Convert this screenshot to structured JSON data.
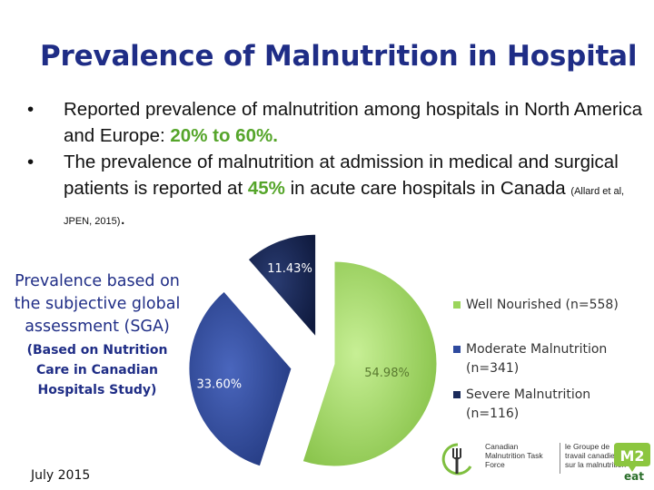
{
  "title": "Prevalence of Malnutrition in Hospital",
  "bullets": {
    "b1_text": "Reported prevalence of malnutrition among hospitals in North America and Europe: ",
    "b1_highlight": "20% to 60%.",
    "b2_text_a": "The prevalence of malnutrition at admission in medical and surgical patients is reported at ",
    "b2_highlight": "45%",
    "b2_text_b": " in acute care hospitals in Canada ",
    "b2_citation": "(Allard et al, JPEN, 2015)",
    "b2_end": "."
  },
  "sga_label": {
    "main": "Prevalence based on the subjective global assessment (SGA)",
    "sub": "(Based on Nutrition Care in Canadian Hospitals Study)"
  },
  "date": "July 2015",
  "logo": {
    "en": "Canadian Malnutrition Task Force",
    "fr": "le Groupe de travail canadien sur la malnutrition",
    "m2_top": "M2",
    "m2_bottom": "eat"
  },
  "chart_data": {
    "type": "pie",
    "series": [
      {
        "name": "Well Nourished (n=558)",
        "value": 54.98,
        "label": "54.98%",
        "color": "#9bd55b"
      },
      {
        "name": "Moderate Malnutrition (n=341)",
        "value": 33.6,
        "label": "33.60%",
        "color": "#2e4a9e"
      },
      {
        "name": "Severe Malnutrition (n=116)",
        "value": 11.43,
        "label": "11.43%",
        "color": "#1a2a5a"
      }
    ],
    "legend_position": "right",
    "exploded": true
  },
  "legend": {
    "item1_line1": "Well Nourished (n=558)",
    "item2_line1": "Moderate Malnutrition",
    "item2_line2": "(n=341)",
    "item3_line1": "Severe Malnutrition",
    "item3_line2": "(n=116)"
  }
}
